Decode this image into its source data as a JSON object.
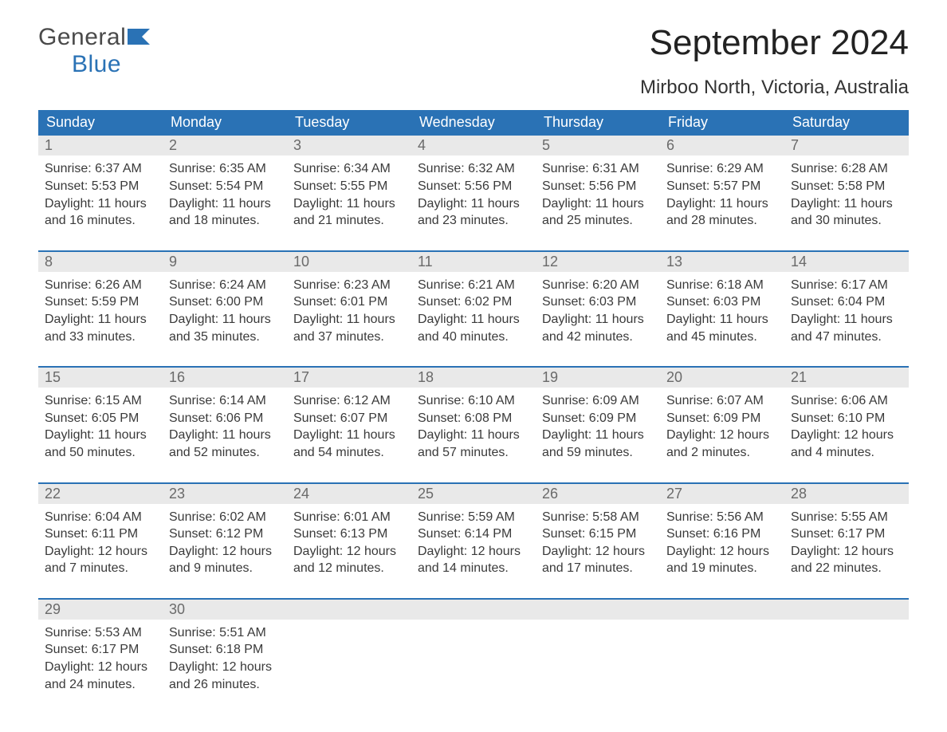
{
  "logo": {
    "word1": "General",
    "word2": "Blue"
  },
  "title": "September 2024",
  "location": "Mirboo North, Victoria, Australia",
  "colors": {
    "header_bg": "#2a72b5",
    "header_text": "#ffffff",
    "daynum_bg": "#e9e9e9",
    "daynum_text": "#6a6a6a",
    "week_border": "#2a72b5",
    "body_text": "#3a3a3a",
    "logo_gray": "#4a4a4a",
    "logo_blue": "#2a72b5",
    "background": "#ffffff"
  },
  "weekdays": [
    "Sunday",
    "Monday",
    "Tuesday",
    "Wednesday",
    "Thursday",
    "Friday",
    "Saturday"
  ],
  "weeks": [
    [
      {
        "n": "1",
        "sr": "6:37 AM",
        "ss": "5:53 PM",
        "dl": "11 hours and 16 minutes."
      },
      {
        "n": "2",
        "sr": "6:35 AM",
        "ss": "5:54 PM",
        "dl": "11 hours and 18 minutes."
      },
      {
        "n": "3",
        "sr": "6:34 AM",
        "ss": "5:55 PM",
        "dl": "11 hours and 21 minutes."
      },
      {
        "n": "4",
        "sr": "6:32 AM",
        "ss": "5:56 PM",
        "dl": "11 hours and 23 minutes."
      },
      {
        "n": "5",
        "sr": "6:31 AM",
        "ss": "5:56 PM",
        "dl": "11 hours and 25 minutes."
      },
      {
        "n": "6",
        "sr": "6:29 AM",
        "ss": "5:57 PM",
        "dl": "11 hours and 28 minutes."
      },
      {
        "n": "7",
        "sr": "6:28 AM",
        "ss": "5:58 PM",
        "dl": "11 hours and 30 minutes."
      }
    ],
    [
      {
        "n": "8",
        "sr": "6:26 AM",
        "ss": "5:59 PM",
        "dl": "11 hours and 33 minutes."
      },
      {
        "n": "9",
        "sr": "6:24 AM",
        "ss": "6:00 PM",
        "dl": "11 hours and 35 minutes."
      },
      {
        "n": "10",
        "sr": "6:23 AM",
        "ss": "6:01 PM",
        "dl": "11 hours and 37 minutes."
      },
      {
        "n": "11",
        "sr": "6:21 AM",
        "ss": "6:02 PM",
        "dl": "11 hours and 40 minutes."
      },
      {
        "n": "12",
        "sr": "6:20 AM",
        "ss": "6:03 PM",
        "dl": "11 hours and 42 minutes."
      },
      {
        "n": "13",
        "sr": "6:18 AM",
        "ss": "6:03 PM",
        "dl": "11 hours and 45 minutes."
      },
      {
        "n": "14",
        "sr": "6:17 AM",
        "ss": "6:04 PM",
        "dl": "11 hours and 47 minutes."
      }
    ],
    [
      {
        "n": "15",
        "sr": "6:15 AM",
        "ss": "6:05 PM",
        "dl": "11 hours and 50 minutes."
      },
      {
        "n": "16",
        "sr": "6:14 AM",
        "ss": "6:06 PM",
        "dl": "11 hours and 52 minutes."
      },
      {
        "n": "17",
        "sr": "6:12 AM",
        "ss": "6:07 PM",
        "dl": "11 hours and 54 minutes."
      },
      {
        "n": "18",
        "sr": "6:10 AM",
        "ss": "6:08 PM",
        "dl": "11 hours and 57 minutes."
      },
      {
        "n": "19",
        "sr": "6:09 AM",
        "ss": "6:09 PM",
        "dl": "11 hours and 59 minutes."
      },
      {
        "n": "20",
        "sr": "6:07 AM",
        "ss": "6:09 PM",
        "dl": "12 hours and 2 minutes."
      },
      {
        "n": "21",
        "sr": "6:06 AM",
        "ss": "6:10 PM",
        "dl": "12 hours and 4 minutes."
      }
    ],
    [
      {
        "n": "22",
        "sr": "6:04 AM",
        "ss": "6:11 PM",
        "dl": "12 hours and 7 minutes."
      },
      {
        "n": "23",
        "sr": "6:02 AM",
        "ss": "6:12 PM",
        "dl": "12 hours and 9 minutes."
      },
      {
        "n": "24",
        "sr": "6:01 AM",
        "ss": "6:13 PM",
        "dl": "12 hours and 12 minutes."
      },
      {
        "n": "25",
        "sr": "5:59 AM",
        "ss": "6:14 PM",
        "dl": "12 hours and 14 minutes."
      },
      {
        "n": "26",
        "sr": "5:58 AM",
        "ss": "6:15 PM",
        "dl": "12 hours and 17 minutes."
      },
      {
        "n": "27",
        "sr": "5:56 AM",
        "ss": "6:16 PM",
        "dl": "12 hours and 19 minutes."
      },
      {
        "n": "28",
        "sr": "5:55 AM",
        "ss": "6:17 PM",
        "dl": "12 hours and 22 minutes."
      }
    ],
    [
      {
        "n": "29",
        "sr": "5:53 AM",
        "ss": "6:17 PM",
        "dl": "12 hours and 24 minutes."
      },
      {
        "n": "30",
        "sr": "5:51 AM",
        "ss": "6:18 PM",
        "dl": "12 hours and 26 minutes."
      },
      null,
      null,
      null,
      null,
      null
    ]
  ],
  "labels": {
    "sunrise": "Sunrise: ",
    "sunset": "Sunset: ",
    "daylight": "Daylight: "
  }
}
